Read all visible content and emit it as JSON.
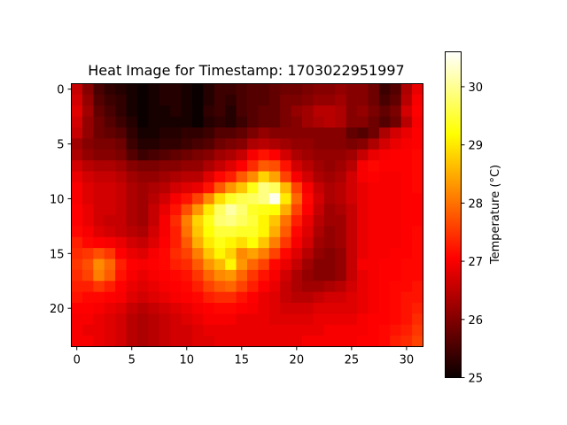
{
  "chart_data": {
    "type": "heatmap",
    "title": "Heat Image for Timestamp: 1703022951997",
    "xlabel": "",
    "ylabel": "",
    "x_ticks": [
      0,
      5,
      10,
      15,
      20,
      25,
      30
    ],
    "y_ticks": [
      0,
      5,
      10,
      15,
      20
    ],
    "xlim": [
      -0.5,
      31.5
    ],
    "ylim": [
      23.5,
      -0.5
    ],
    "colormap": "hot",
    "colorbar": {
      "label": "Temperature (°C)",
      "vmin": 25.0,
      "vmax": 30.6,
      "ticks": [
        25,
        26,
        27,
        28,
        29,
        30
      ]
    },
    "grid": false,
    "rows": 24,
    "cols": 32,
    "values": [
      [
        26.5,
        26.0,
        25.5,
        25.3,
        25.2,
        25.1,
        25.0,
        25.1,
        25.2,
        25.2,
        25.1,
        25.0,
        25.2,
        25.4,
        25.4,
        25.5,
        25.6,
        25.6,
        25.7,
        25.8,
        25.8,
        25.9,
        26.0,
        26.0,
        26.1,
        26.0,
        26.0,
        25.8,
        25.4,
        25.6,
        26.3,
        26.8
      ],
      [
        26.6,
        26.1,
        25.6,
        25.4,
        25.3,
        25.1,
        25.0,
        25.1,
        25.2,
        25.2,
        25.1,
        25.0,
        25.2,
        25.4,
        25.3,
        25.5,
        25.6,
        25.6,
        25.7,
        25.9,
        25.9,
        26.0,
        26.1,
        26.1,
        26.2,
        26.0,
        26.0,
        25.8,
        25.5,
        25.7,
        26.4,
        26.9
      ],
      [
        26.7,
        26.2,
        25.7,
        25.5,
        25.3,
        25.1,
        25.0,
        25.1,
        25.1,
        25.2,
        25.1,
        25.0,
        25.3,
        25.4,
        25.2,
        25.5,
        25.6,
        25.7,
        25.7,
        25.9,
        26.1,
        26.2,
        26.4,
        26.4,
        26.3,
        26.0,
        26.1,
        25.9,
        25.7,
        25.9,
        26.6,
        27.0
      ],
      [
        26.6,
        26.1,
        25.8,
        25.6,
        25.4,
        25.2,
        25.0,
        25.1,
        25.1,
        25.1,
        25.1,
        25.0,
        25.2,
        25.3,
        25.2,
        25.4,
        25.6,
        25.7,
        25.7,
        25.9,
        26.0,
        26.2,
        26.3,
        26.4,
        26.3,
        26.0,
        26.0,
        25.8,
        25.6,
        25.8,
        26.4,
        26.9
      ],
      [
        26.5,
        26.1,
        25.8,
        25.7,
        25.6,
        25.3,
        25.1,
        25.1,
        25.2,
        25.2,
        25.3,
        25.3,
        25.4,
        25.6,
        25.6,
        25.7,
        25.9,
        26.1,
        26.0,
        26.0,
        26.0,
        26.0,
        26.0,
        26.0,
        26.0,
        25.7,
        25.6,
        25.8,
        26.3,
        26.6,
        26.8,
        27.0
      ],
      [
        26.2,
        26.0,
        25.9,
        25.9,
        25.8,
        25.4,
        25.2,
        25.2,
        25.3,
        25.3,
        25.4,
        25.5,
        25.6,
        25.8,
        25.9,
        26.0,
        26.3,
        26.4,
        26.3,
        26.2,
        26.1,
        26.1,
        26.0,
        26.0,
        26.0,
        25.9,
        26.0,
        26.3,
        26.6,
        26.8,
        26.9,
        27.0
      ],
      [
        26.3,
        26.1,
        26.0,
        26.0,
        25.9,
        25.6,
        25.4,
        25.5,
        25.6,
        25.7,
        25.8,
        25.9,
        26.0,
        26.2,
        26.3,
        26.5,
        26.9,
        27.2,
        27.0,
        26.6,
        26.3,
        26.2,
        26.1,
        26.1,
        26.1,
        26.2,
        26.5,
        26.8,
        26.9,
        27.0,
        27.0,
        27.1
      ],
      [
        26.6,
        26.4,
        26.3,
        26.3,
        26.2,
        26.0,
        25.9,
        25.9,
        26.0,
        26.0,
        26.1,
        26.1,
        26.3,
        26.5,
        26.7,
        27.0,
        27.4,
        27.8,
        27.7,
        27.2,
        26.6,
        26.4,
        26.2,
        26.1,
        26.2,
        26.4,
        26.9,
        27.1,
        27.0,
        27.0,
        27.0,
        27.1
      ],
      [
        26.8,
        26.6,
        26.5,
        26.5,
        26.4,
        26.2,
        26.1,
        26.1,
        26.2,
        26.3,
        26.4,
        26.4,
        26.7,
        27.1,
        27.3,
        27.8,
        28.2,
        28.8,
        28.4,
        27.6,
        26.9,
        26.6,
        26.3,
        26.2,
        26.3,
        26.6,
        26.9,
        27.0,
        26.9,
        26.9,
        27.0,
        27.1
      ],
      [
        26.9,
        26.7,
        26.6,
        26.6,
        26.5,
        26.3,
        26.2,
        26.3,
        26.4,
        26.6,
        26.7,
        26.8,
        27.2,
        27.8,
        28.3,
        28.7,
        29.3,
        29.9,
        29.7,
        28.6,
        27.6,
        26.9,
        26.5,
        26.3,
        26.4,
        26.6,
        26.8,
        26.9,
        26.9,
        26.9,
        27.0,
        27.1
      ],
      [
        26.9,
        26.7,
        26.6,
        26.6,
        26.5,
        26.3,
        26.2,
        26.4,
        26.6,
        26.9,
        27.2,
        27.6,
        28.2,
        28.9,
        29.4,
        29.6,
        29.7,
        29.9,
        30.5,
        29.0,
        27.9,
        27.1,
        26.6,
        26.3,
        26.4,
        26.6,
        26.8,
        26.9,
        26.9,
        26.9,
        27.0,
        27.0
      ],
      [
        27.0,
        26.8,
        26.6,
        26.6,
        26.5,
        26.3,
        26.2,
        26.5,
        26.8,
        27.2,
        27.7,
        28.3,
        29.0,
        29.7,
        30.1,
        29.8,
        29.4,
        29.3,
        29.2,
        28.5,
        27.6,
        27.0,
        26.5,
        26.2,
        26.3,
        26.5,
        26.8,
        26.9,
        26.9,
        26.9,
        27.0,
        27.0
      ],
      [
        27.0,
        26.8,
        26.6,
        26.5,
        26.5,
        26.3,
        26.2,
        26.5,
        26.9,
        27.4,
        28.1,
        28.8,
        29.3,
        29.8,
        29.9,
        29.7,
        29.5,
        29.1,
        28.7,
        28.0,
        27.3,
        26.8,
        26.4,
        26.2,
        26.2,
        26.5,
        26.8,
        26.9,
        26.9,
        26.9,
        27.0,
        27.0
      ],
      [
        27.1,
        26.9,
        26.7,
        26.6,
        26.5,
        26.4,
        26.3,
        26.6,
        26.9,
        27.3,
        28.0,
        28.7,
        29.2,
        29.5,
        29.5,
        29.4,
        29.4,
        29.1,
        28.5,
        27.8,
        27.1,
        26.7,
        26.3,
        26.1,
        26.2,
        26.5,
        26.8,
        26.9,
        26.9,
        26.9,
        27.0,
        27.1
      ],
      [
        27.3,
        27.1,
        27.0,
        26.9,
        26.8,
        26.6,
        26.5,
        26.7,
        27.0,
        27.3,
        27.8,
        28.5,
        29.0,
        29.3,
        29.1,
        28.9,
        29.2,
        28.7,
        28.1,
        27.5,
        26.9,
        26.6,
        26.2,
        26.1,
        26.2,
        26.5,
        26.8,
        26.9,
        26.9,
        26.9,
        27.0,
        27.1
      ],
      [
        27.4,
        27.5,
        27.7,
        27.5,
        27.0,
        26.8,
        26.7,
        26.9,
        27.1,
        27.4,
        27.6,
        28.1,
        28.7,
        29.1,
        28.8,
        28.2,
        28.4,
        28.1,
        27.6,
        27.1,
        26.7,
        26.4,
        26.1,
        26.0,
        26.1,
        26.5,
        26.8,
        26.9,
        26.9,
        27.0,
        27.0,
        27.1
      ],
      [
        27.5,
        27.7,
        28.2,
        27.9,
        27.3,
        27.0,
        26.9,
        27.0,
        27.1,
        27.3,
        27.4,
        27.8,
        28.3,
        28.6,
        29.1,
        28.3,
        27.9,
        27.6,
        27.1,
        26.8,
        26.5,
        26.2,
        26.0,
        26.0,
        26.1,
        26.5,
        26.9,
        26.9,
        27.0,
        27.0,
        27.1,
        27.1
      ],
      [
        27.4,
        27.6,
        28.1,
        27.8,
        27.2,
        26.9,
        26.8,
        26.9,
        27.0,
        27.1,
        27.2,
        27.5,
        27.9,
        28.2,
        28.3,
        27.9,
        27.5,
        27.2,
        26.9,
        26.6,
        26.3,
        26.1,
        26.0,
        26.0,
        26.1,
        26.5,
        26.8,
        26.9,
        27.0,
        27.0,
        27.1,
        27.1
      ],
      [
        27.3,
        27.3,
        27.5,
        27.3,
        27.0,
        26.8,
        26.7,
        26.8,
        26.9,
        27.0,
        27.1,
        27.3,
        27.6,
        27.8,
        27.9,
        27.6,
        27.3,
        27.0,
        26.8,
        26.5,
        26.3,
        26.2,
        26.2,
        26.3,
        26.4,
        26.6,
        26.8,
        26.9,
        27.0,
        27.1,
        27.1,
        27.2
      ],
      [
        27.2,
        27.1,
        27.1,
        27.0,
        26.9,
        26.7,
        26.6,
        26.7,
        26.8,
        26.9,
        27.0,
        27.1,
        27.3,
        27.4,
        27.4,
        27.2,
        27.0,
        26.8,
        26.7,
        26.5,
        26.4,
        26.4,
        26.5,
        26.6,
        26.6,
        26.7,
        26.8,
        26.9,
        27.0,
        27.1,
        27.2,
        27.2
      ],
      [
        27.0,
        27.0,
        26.9,
        26.8,
        26.7,
        26.5,
        26.4,
        26.5,
        26.6,
        26.7,
        26.8,
        26.9,
        27.0,
        27.1,
        27.1,
        27.0,
        26.9,
        26.8,
        26.7,
        26.6,
        26.6,
        26.6,
        26.7,
        26.7,
        26.7,
        26.7,
        26.8,
        26.9,
        27.0,
        27.1,
        27.2,
        27.3
      ],
      [
        26.9,
        26.9,
        26.8,
        26.7,
        26.6,
        26.4,
        26.3,
        26.4,
        26.5,
        26.6,
        26.7,
        26.8,
        26.9,
        26.9,
        26.9,
        26.8,
        26.8,
        26.8,
        26.7,
        26.7,
        26.7,
        26.7,
        26.8,
        26.8,
        26.8,
        26.8,
        26.9,
        27.0,
        27.0,
        27.1,
        27.2,
        27.4
      ],
      [
        26.9,
        26.8,
        26.8,
        26.7,
        26.6,
        26.4,
        26.3,
        26.4,
        26.5,
        26.6,
        26.6,
        26.7,
        26.8,
        26.8,
        26.8,
        26.8,
        26.8,
        26.8,
        26.8,
        26.8,
        26.8,
        26.8,
        26.8,
        26.9,
        26.9,
        26.9,
        26.9,
        27.0,
        27.1,
        27.2,
        27.3,
        27.5
      ],
      [
        26.9,
        26.9,
        26.8,
        26.7,
        26.6,
        26.4,
        26.3,
        26.4,
        26.5,
        26.6,
        26.6,
        26.7,
        26.7,
        26.8,
        26.8,
        26.8,
        26.8,
        26.8,
        26.8,
        26.8,
        26.8,
        26.9,
        26.9,
        26.9,
        26.9,
        26.9,
        27.0,
        27.0,
        27.1,
        27.3,
        27.4,
        27.6
      ]
    ]
  }
}
